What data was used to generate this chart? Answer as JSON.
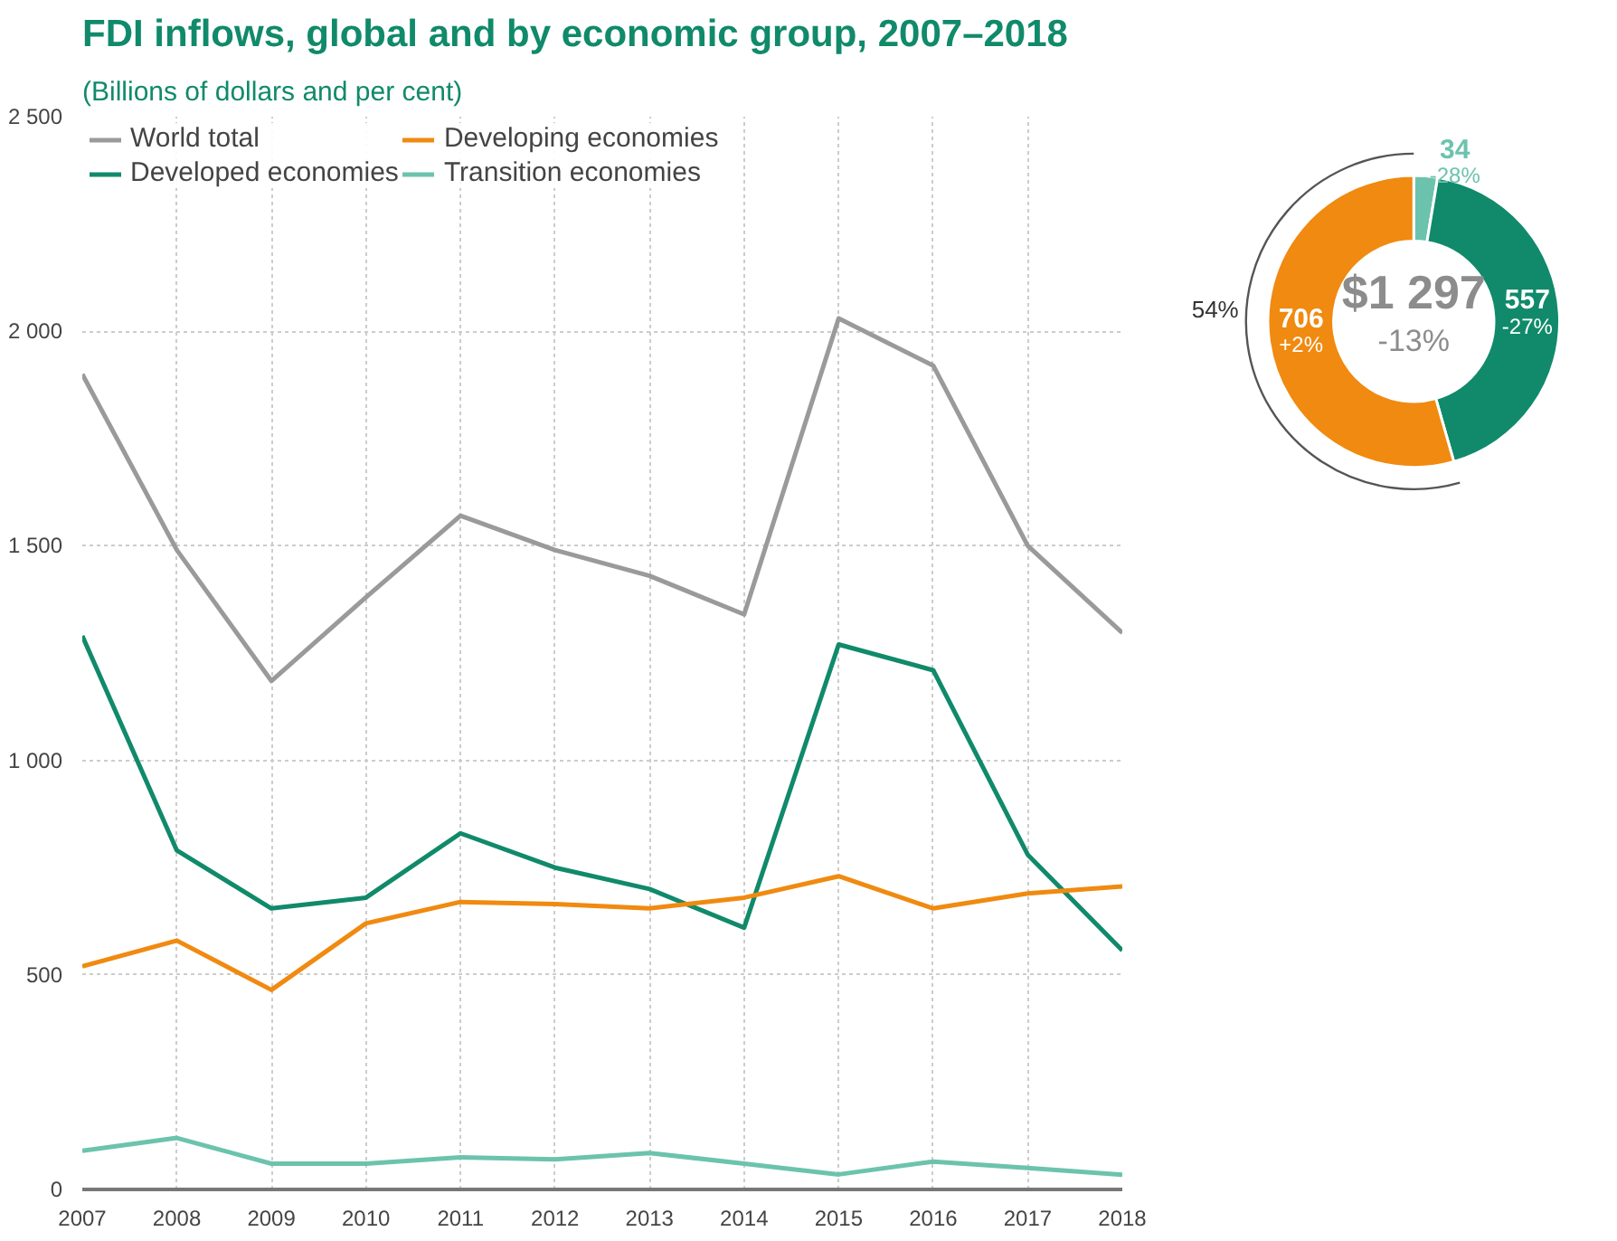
{
  "chart_data": [
    {
      "type": "line",
      "title": "FDI inflows, global and by economic group, 2007–2018",
      "subtitle": "(Billions of dollars and per cent)",
      "x": [
        2007,
        2008,
        2009,
        2010,
        2011,
        2012,
        2013,
        2014,
        2015,
        2016,
        2017,
        2018
      ],
      "series": [
        {
          "name": "World total",
          "color": "#9a9a9a",
          "values": [
            1900,
            1490,
            1185,
            1380,
            1570,
            1490,
            1430,
            1340,
            2030,
            1920,
            1500,
            1297
          ]
        },
        {
          "name": "Developed economies",
          "color": "#108a6a",
          "values": [
            1290,
            790,
            655,
            680,
            830,
            750,
            700,
            610,
            1270,
            1210,
            780,
            557
          ]
        },
        {
          "name": "Developing economies",
          "color": "#f08a10",
          "values": [
            520,
            580,
            465,
            620,
            670,
            665,
            655,
            680,
            730,
            655,
            690,
            706
          ]
        },
        {
          "name": "Transition economies",
          "color": "#6cc3ad",
          "values": [
            90,
            120,
            60,
            60,
            75,
            70,
            85,
            60,
            35,
            65,
            50,
            34
          ]
        }
      ],
      "xlim": [
        2007,
        2018
      ],
      "xticks": [
        2007,
        2008,
        2009,
        2010,
        2011,
        2012,
        2013,
        2014,
        2015,
        2016,
        2017,
        2018
      ],
      "ylim": [
        0,
        2500
      ],
      "yticks": [
        0,
        {
          "value": 500,
          "label": "500"
        },
        {
          "value": 1000,
          "label": "1 000"
        },
        {
          "value": 1500,
          "label": "1 500"
        },
        {
          "value": 2000,
          "label": "2 000"
        },
        {
          "value": 2500,
          "label": "2 500"
        }
      ],
      "grid": true,
      "legend": "top",
      "marker": "none",
      "line_style": "solid"
    },
    {
      "type": "donut",
      "categories": [
        null,
        null,
        null
      ],
      "values": [
        34,
        557,
        706
      ],
      "colors": [
        "#6cc3ad",
        "#108a6a",
        "#f08a10"
      ],
      "value_labels": [
        "34 -28%",
        "557 -27%",
        "706 +2%"
      ],
      "annotations": [
        "$1 297",
        "-13%",
        "54%"
      ]
    }
  ]
}
